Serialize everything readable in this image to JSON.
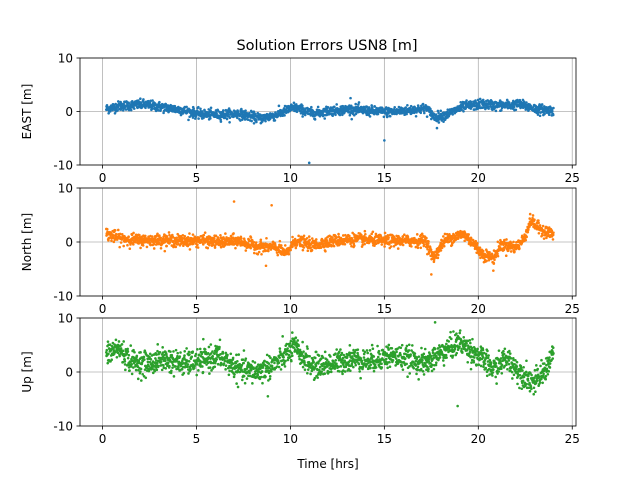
{
  "figure_title": "Solution Errors USN8 [m]",
  "chart_data": [
    {
      "type": "scatter",
      "ylabel": "EAST [m]",
      "xlabel": "",
      "xlim": [
        -1.2,
        25.2
      ],
      "ylim": [
        -10,
        10
      ],
      "xticks": [
        0,
        5,
        10,
        15,
        20,
        25
      ],
      "yticks": [
        -10,
        0,
        10
      ],
      "grid": true,
      "color": "#1f77b4",
      "noise": 0.45,
      "anchors": [
        [
          0.2,
          0.5
        ],
        [
          1.0,
          1.1
        ],
        [
          2.2,
          1.3
        ],
        [
          3.2,
          0.8
        ],
        [
          4.2,
          0.3
        ],
        [
          5.2,
          -0.5
        ],
        [
          6.2,
          -0.6
        ],
        [
          7.2,
          -0.4
        ],
        [
          8.4,
          -1.3
        ],
        [
          9.2,
          -0.7
        ],
        [
          10.2,
          0.8
        ],
        [
          11.2,
          -0.4
        ],
        [
          12.2,
          0.2
        ],
        [
          13.2,
          0.4
        ],
        [
          14.2,
          0.1
        ],
        [
          15.2,
          -0.1
        ],
        [
          16.2,
          0.2
        ],
        [
          17.2,
          0.6
        ],
        [
          17.7,
          -1.1
        ],
        [
          18.3,
          -0.6
        ],
        [
          19.2,
          0.9
        ],
        [
          20.2,
          1.4
        ],
        [
          21.0,
          1.1
        ],
        [
          22.2,
          1.3
        ],
        [
          23.2,
          0.4
        ],
        [
          24.0,
          0.2
        ]
      ],
      "outliers": [
        [
          11.0,
          -9.6
        ],
        [
          15.0,
          -5.4
        ],
        [
          13.2,
          2.5
        ],
        [
          17.8,
          -3.1
        ]
      ]
    },
    {
      "type": "scatter",
      "ylabel": "North [m]",
      "xlabel": "",
      "xlim": [
        -1.2,
        25.2
      ],
      "ylim": [
        -10,
        10
      ],
      "xticks": [
        0,
        5,
        10,
        15,
        20,
        25
      ],
      "yticks": [
        -10,
        0,
        10
      ],
      "grid": true,
      "color": "#ff7f0e",
      "noise": 0.55,
      "anchors": [
        [
          0.2,
          1.5
        ],
        [
          1.0,
          0.6
        ],
        [
          2.2,
          0.3
        ],
        [
          3.2,
          0.4
        ],
        [
          4.2,
          0.2
        ],
        [
          5.2,
          0.3
        ],
        [
          6.2,
          0.0
        ],
        [
          7.2,
          0.2
        ],
        [
          8.2,
          -0.8
        ],
        [
          9.2,
          -1.0
        ],
        [
          9.8,
          -2.2
        ],
        [
          10.2,
          0.2
        ],
        [
          11.2,
          -0.6
        ],
        [
          12.2,
          0.2
        ],
        [
          13.2,
          0.5
        ],
        [
          14.2,
          0.4
        ],
        [
          15.2,
          0.2
        ],
        [
          16.2,
          0.2
        ],
        [
          17.2,
          0.3
        ],
        [
          17.6,
          -3.0
        ],
        [
          18.2,
          0.3
        ],
        [
          19.2,
          1.5
        ],
        [
          19.6,
          0.3
        ],
        [
          20.2,
          -2.2
        ],
        [
          20.8,
          -3.0
        ],
        [
          21.2,
          -0.5
        ],
        [
          22.0,
          -1.0
        ],
        [
          22.4,
          0.4
        ],
        [
          22.8,
          4.0
        ],
        [
          23.2,
          2.6
        ],
        [
          24.0,
          1.3
        ]
      ],
      "outliers": [
        [
          7.0,
          7.5
        ],
        [
          9.0,
          6.8
        ],
        [
          17.5,
          -6.0
        ],
        [
          20.8,
          -5.3
        ],
        [
          8.7,
          -4.4
        ]
      ]
    },
    {
      "type": "scatter",
      "ylabel": "Up [m]",
      "xlabel": "Time [hrs]",
      "xlim": [
        -1.2,
        25.2
      ],
      "ylim": [
        -10,
        10
      ],
      "xticks": [
        0,
        5,
        10,
        15,
        20,
        25
      ],
      "yticks": [
        -10,
        0,
        10
      ],
      "grid": true,
      "color": "#2ca02c",
      "noise": 1.1,
      "anchors": [
        [
          0.2,
          3.0
        ],
        [
          0.8,
          4.5
        ],
        [
          1.5,
          2.0
        ],
        [
          2.5,
          1.5
        ],
        [
          3.2,
          2.5
        ],
        [
          4.2,
          1.5
        ],
        [
          5.2,
          2.0
        ],
        [
          6.2,
          3.0
        ],
        [
          7.2,
          0.5
        ],
        [
          8.2,
          0.0
        ],
        [
          9.2,
          1.5
        ],
        [
          10.2,
          4.5
        ],
        [
          11.2,
          1.0
        ],
        [
          12.2,
          1.5
        ],
        [
          13.2,
          2.5
        ],
        [
          14.2,
          2.0
        ],
        [
          15.2,
          3.0
        ],
        [
          16.2,
          2.5
        ],
        [
          17.2,
          1.5
        ],
        [
          18.0,
          3.5
        ],
        [
          19.0,
          5.5
        ],
        [
          20.0,
          3.0
        ],
        [
          20.8,
          0.5
        ],
        [
          21.5,
          2.5
        ],
        [
          22.2,
          0.0
        ],
        [
          23.0,
          -2.0
        ],
        [
          23.5,
          0.0
        ],
        [
          24.0,
          3.5
        ]
      ],
      "outliers": [
        [
          18.9,
          -6.3
        ],
        [
          17.7,
          9.2
        ],
        [
          8.8,
          -4.5
        ],
        [
          10.1,
          7.3
        ]
      ]
    }
  ]
}
